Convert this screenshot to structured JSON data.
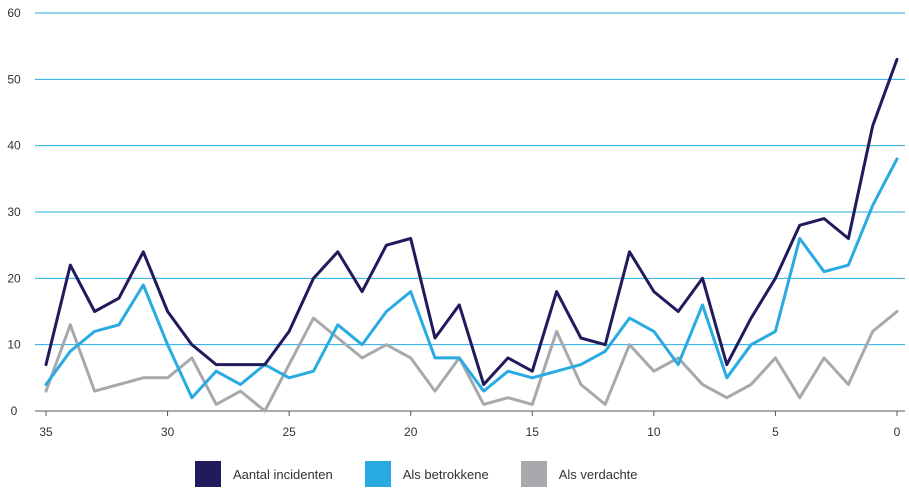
{
  "chart_data": {
    "type": "line",
    "x": [
      35,
      34,
      33,
      32,
      31,
      30,
      29,
      28,
      27,
      26,
      25,
      24,
      23,
      22,
      21,
      20,
      19,
      18,
      17,
      16,
      15,
      14,
      13,
      12,
      11,
      10,
      9,
      8,
      7,
      6,
      5,
      4,
      3,
      2,
      1,
      0
    ],
    "x_ticks": [
      "35",
      "30",
      "25",
      "20",
      "15",
      "10",
      "5",
      "0"
    ],
    "x_tick_values": [
      35,
      30,
      25,
      20,
      15,
      10,
      5,
      0
    ],
    "xlim": [
      35,
      0
    ],
    "ylim": [
      0,
      60
    ],
    "y_ticks": [
      "0",
      "10",
      "20",
      "30",
      "40",
      "50",
      "60"
    ],
    "y_tick_values": [
      0,
      10,
      20,
      30,
      40,
      50,
      60
    ],
    "grid": "horizontal",
    "legend_position": "bottom",
    "series": [
      {
        "name": "Aantal incidenten",
        "color": "#1f1b5c",
        "values": [
          7,
          22,
          15,
          17,
          24,
          15,
          10,
          7,
          7,
          7,
          12,
          20,
          24,
          18,
          25,
          26,
          11,
          16,
          4,
          8,
          6,
          18,
          11,
          10,
          24,
          18,
          15,
          20,
          7,
          14,
          20,
          28,
          29,
          26,
          43,
          53
        ]
      },
      {
        "name": "Als betrokkene",
        "color": "#29abe2",
        "values": [
          4,
          9,
          12,
          13,
          19,
          10,
          2,
          6,
          4,
          7,
          5,
          6,
          13,
          10,
          15,
          18,
          8,
          8,
          3,
          6,
          5,
          6,
          7,
          9,
          14,
          12,
          7,
          16,
          5,
          10,
          12,
          26,
          21,
          22,
          31,
          38
        ]
      },
      {
        "name": "Als verdachte",
        "color": "#a7a9ac",
        "values": [
          3,
          13,
          3,
          4,
          5,
          5,
          8,
          1,
          3,
          0,
          7,
          14,
          11,
          8,
          10,
          8,
          3,
          8,
          1,
          2,
          1,
          12,
          4,
          1,
          10,
          6,
          8,
          4,
          2,
          4,
          8,
          2,
          8,
          4,
          12,
          15
        ]
      }
    ]
  }
}
